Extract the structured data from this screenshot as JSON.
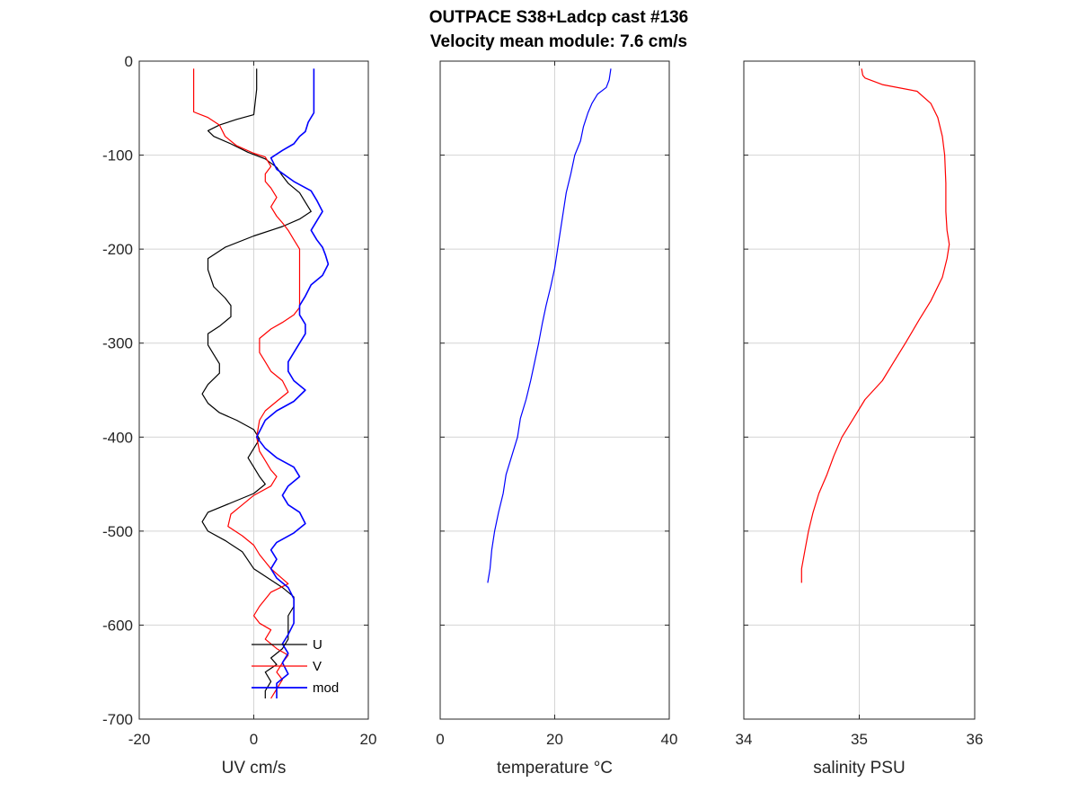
{
  "figure": {
    "title_line1": "OUTPACE S38+Ladcp cast #136",
    "title_line2": "Velocity mean module:  7.6 cm/s"
  },
  "chart_data": [
    {
      "type": "line",
      "xlabel": "UV cm/s",
      "ylabel": "",
      "xlim": [
        -20,
        20
      ],
      "ylim": [
        -700,
        0
      ],
      "xticks": [
        "-20",
        "0",
        "20"
      ],
      "yticks": [
        "0",
        "-100",
        "-200",
        "-300",
        "-400",
        "-500",
        "-600",
        "-700"
      ],
      "grid": true,
      "legend_position": "bottom-right",
      "series": [
        {
          "name": "U",
          "color": "#000000",
          "points": [
            [
              0.5,
              -8
            ],
            [
              0.5,
              -30
            ],
            [
              0,
              -57
            ],
            [
              -3,
              -62
            ],
            [
              -6,
              -68
            ],
            [
              -8,
              -74
            ],
            [
              -7,
              -80
            ],
            [
              -4,
              -88
            ],
            [
              -1,
              -97
            ],
            [
              2,
              -104
            ],
            [
              4,
              -113
            ],
            [
              5,
              -122
            ],
            [
              6,
              -130
            ],
            [
              8,
              -140
            ],
            [
              9,
              -150
            ],
            [
              10,
              -160
            ],
            [
              8,
              -168
            ],
            [
              5,
              -176
            ],
            [
              0,
              -186
            ],
            [
              -5,
              -198
            ],
            [
              -8,
              -210
            ],
            [
              -8,
              -222
            ],
            [
              -7,
              -240
            ],
            [
              -5,
              -252
            ],
            [
              -4,
              -260
            ],
            [
              -4,
              -272
            ],
            [
              -6,
              -282
            ],
            [
              -8,
              -290
            ],
            [
              -8,
              -302
            ],
            [
              -7,
              -312
            ],
            [
              -6,
              -322
            ],
            [
              -6,
              -332
            ],
            [
              -8,
              -344
            ],
            [
              -9,
              -354
            ],
            [
              -8,
              -364
            ],
            [
              -6,
              -374
            ],
            [
              -3,
              -382
            ],
            [
              0,
              -392
            ],
            [
              1,
              -402
            ],
            [
              0,
              -412
            ],
            [
              -1,
              -422
            ],
            [
              0,
              -432
            ],
            [
              1,
              -442
            ],
            [
              2,
              -450
            ],
            [
              0,
              -460
            ],
            [
              -4,
              -470
            ],
            [
              -8,
              -480
            ],
            [
              -9,
              -490
            ],
            [
              -8,
              -500
            ],
            [
              -5,
              -510
            ],
            [
              -2,
              -522
            ],
            [
              0,
              -540
            ],
            [
              3,
              -552
            ],
            [
              5,
              -560
            ],
            [
              7,
              -570
            ],
            [
              7,
              -580
            ],
            [
              6,
              -590
            ],
            [
              6,
              -602
            ],
            [
              6,
              -615
            ],
            [
              5,
              -625
            ],
            [
              3,
              -635
            ],
            [
              4,
              -642
            ],
            [
              2,
              -650
            ],
            [
              3,
              -660
            ],
            [
              2,
              -670
            ],
            [
              2,
              -678
            ]
          ]
        },
        {
          "name": "V",
          "color": "#ff0000",
          "points": [
            [
              -10.5,
              -8
            ],
            [
              -10.5,
              -54
            ],
            [
              -8,
              -60
            ],
            [
              -6,
              -68
            ],
            [
              -5,
              -80
            ],
            [
              -3,
              -90
            ],
            [
              0,
              -98
            ],
            [
              2,
              -102
            ],
            [
              3,
              -112
            ],
            [
              2,
              -120
            ],
            [
              2,
              -128
            ],
            [
              3,
              -135
            ],
            [
              4,
              -145
            ],
            [
              3,
              -155
            ],
            [
              4,
              -165
            ],
            [
              5,
              -172
            ],
            [
              6,
              -180
            ],
            [
              7,
              -190
            ],
            [
              8,
              -200
            ],
            [
              8,
              -215
            ],
            [
              8,
              -230
            ],
            [
              8,
              -250
            ],
            [
              8,
              -262
            ],
            [
              7,
              -270
            ],
            [
              5,
              -278
            ],
            [
              3,
              -285
            ],
            [
              1,
              -295
            ],
            [
              1,
              -310
            ],
            [
              2,
              -320
            ],
            [
              3,
              -330
            ],
            [
              5,
              -340
            ],
            [
              6,
              -352
            ],
            [
              4,
              -362
            ],
            [
              2,
              -372
            ],
            [
              1,
              -382
            ],
            [
              0.5,
              -400
            ],
            [
              1,
              -415
            ],
            [
              2,
              -425
            ],
            [
              3,
              -435
            ],
            [
              4,
              -442
            ],
            [
              3,
              -452
            ],
            [
              0,
              -462
            ],
            [
              -2,
              -472
            ],
            [
              -4,
              -482
            ],
            [
              -4.5,
              -495
            ],
            [
              -2,
              -505
            ],
            [
              0,
              -515
            ],
            [
              1,
              -525
            ],
            [
              3,
              -540
            ],
            [
              6,
              -556
            ],
            [
              3,
              -565
            ],
            [
              1,
              -580
            ],
            [
              0,
              -590
            ],
            [
              1,
              -598
            ],
            [
              3,
              -605
            ],
            [
              2,
              -615
            ],
            [
              4,
              -625
            ],
            [
              6,
              -632
            ],
            [
              5,
              -640
            ],
            [
              4,
              -650
            ],
            [
              5,
              -658
            ],
            [
              4,
              -668
            ],
            [
              3,
              -678
            ]
          ]
        },
        {
          "name": "mod",
          "color": "#0000ff",
          "points": [
            [
              10.5,
              -8
            ],
            [
              10.5,
              -55
            ],
            [
              9.5,
              -65
            ],
            [
              9,
              -75
            ],
            [
              8,
              -80
            ],
            [
              7,
              -88
            ],
            [
              5,
              -95
            ],
            [
              3,
              -103
            ],
            [
              4,
              -115
            ],
            [
              7,
              -128
            ],
            [
              10,
              -138
            ],
            [
              11,
              -148
            ],
            [
              12,
              -160
            ],
            [
              11,
              -170
            ],
            [
              10,
              -180
            ],
            [
              11,
              -190
            ],
            [
              12,
              -198
            ],
            [
              12.5,
              -206
            ],
            [
              13,
              -216
            ],
            [
              12,
              -228
            ],
            [
              10,
              -238
            ],
            [
              9,
              -250
            ],
            [
              8,
              -260
            ],
            [
              8,
              -270
            ],
            [
              9,
              -280
            ],
            [
              9,
              -290
            ],
            [
              8,
              -300
            ],
            [
              7,
              -310
            ],
            [
              6,
              -320
            ],
            [
              6,
              -330
            ],
            [
              7,
              -340
            ],
            [
              9,
              -350
            ],
            [
              7,
              -362
            ],
            [
              4,
              -372
            ],
            [
              2,
              -382
            ],
            [
              0.5,
              -400
            ],
            [
              2,
              -412
            ],
            [
              4,
              -422
            ],
            [
              7,
              -432
            ],
            [
              8,
              -442
            ],
            [
              6,
              -452
            ],
            [
              5,
              -462
            ],
            [
              6,
              -472
            ],
            [
              8,
              -480
            ],
            [
              9,
              -492
            ],
            [
              7,
              -502
            ],
            [
              4,
              -512
            ],
            [
              3,
              -520
            ],
            [
              4,
              -530
            ],
            [
              3,
              -540
            ],
            [
              4,
              -550
            ],
            [
              6,
              -560
            ],
            [
              7,
              -572
            ],
            [
              7,
              -585
            ],
            [
              7,
              -598
            ],
            [
              6,
              -610
            ],
            [
              5,
              -620
            ],
            [
              6,
              -630
            ],
            [
              5,
              -640
            ],
            [
              6,
              -652
            ],
            [
              4,
              -662
            ],
            [
              4,
              -678
            ]
          ]
        }
      ]
    },
    {
      "type": "line",
      "xlabel": "temperature °C",
      "ylabel": "",
      "xlim": [
        0,
        40
      ],
      "ylim": [
        -700,
        0
      ],
      "xticks": [
        "0",
        "20",
        "40"
      ],
      "yticks": [],
      "grid": true,
      "series": [
        {
          "name": "",
          "color": "#0000ff",
          "points": [
            [
              29.8,
              -8
            ],
            [
              29.5,
              -20
            ],
            [
              29,
              -28
            ],
            [
              27.5,
              -35
            ],
            [
              26.5,
              -45
            ],
            [
              25.8,
              -55
            ],
            [
              25,
              -70
            ],
            [
              24.5,
              -85
            ],
            [
              23.5,
              -100
            ],
            [
              22.8,
              -120
            ],
            [
              22,
              -140
            ],
            [
              21.5,
              -160
            ],
            [
              21,
              -180
            ],
            [
              20.5,
              -200
            ],
            [
              20,
              -220
            ],
            [
              19.3,
              -240
            ],
            [
              18.5,
              -260
            ],
            [
              17.8,
              -280
            ],
            [
              17.2,
              -300
            ],
            [
              16.5,
              -320
            ],
            [
              15.8,
              -340
            ],
            [
              15,
              -360
            ],
            [
              14,
              -380
            ],
            [
              13.5,
              -400
            ],
            [
              12.5,
              -420
            ],
            [
              11.5,
              -440
            ],
            [
              11,
              -460
            ],
            [
              10.2,
              -480
            ],
            [
              9.5,
              -500
            ],
            [
              9,
              -520
            ],
            [
              8.7,
              -540
            ],
            [
              8.3,
              -555
            ]
          ]
        }
      ]
    },
    {
      "type": "line",
      "xlabel": "salinity PSU",
      "ylabel": "",
      "xlim": [
        34,
        36
      ],
      "ylim": [
        -700,
        0
      ],
      "xticks": [
        "34",
        "35",
        "36"
      ],
      "yticks": [],
      "grid": true,
      "series": [
        {
          "name": "",
          "color": "#ff0000",
          "points": [
            [
              35.02,
              -8
            ],
            [
              35.03,
              -15
            ],
            [
              35.05,
              -18
            ],
            [
              35.2,
              -25
            ],
            [
              35.5,
              -32
            ],
            [
              35.62,
              -45
            ],
            [
              35.68,
              -60
            ],
            [
              35.72,
              -80
            ],
            [
              35.74,
              -100
            ],
            [
              35.75,
              -130
            ],
            [
              35.75,
              -160
            ],
            [
              35.76,
              -180
            ],
            [
              35.78,
              -195
            ],
            [
              35.76,
              -210
            ],
            [
              35.72,
              -230
            ],
            [
              35.62,
              -255
            ],
            [
              35.52,
              -275
            ],
            [
              35.4,
              -300
            ],
            [
              35.3,
              -320
            ],
            [
              35.2,
              -340
            ],
            [
              35.05,
              -360
            ],
            [
              34.95,
              -380
            ],
            [
              34.85,
              -400
            ],
            [
              34.78,
              -420
            ],
            [
              34.72,
              -440
            ],
            [
              34.65,
              -460
            ],
            [
              34.6,
              -480
            ],
            [
              34.56,
              -500
            ],
            [
              34.53,
              -520
            ],
            [
              34.5,
              -540
            ],
            [
              34.5,
              -555
            ]
          ]
        }
      ]
    }
  ]
}
